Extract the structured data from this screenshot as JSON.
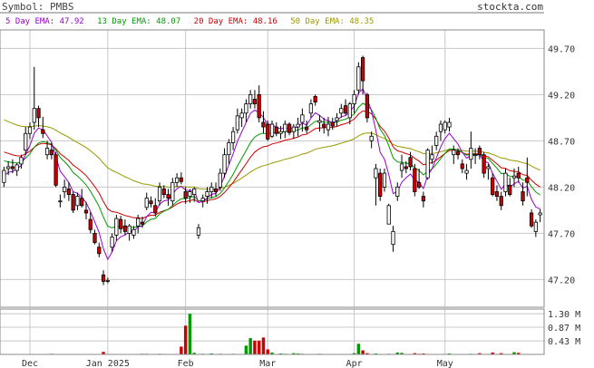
{
  "header": {
    "symbol_text": "Symbol: PMBS",
    "site": "stockta.com"
  },
  "legend": {
    "ema5": "5 Day EMA: 47.92",
    "ema13": "13 Day EMA: 48.07",
    "ema20": "20 Day EMA: 48.16",
    "ema50": "50 Day EMA: 48.35"
  },
  "colors": {
    "ema5": "#9900cc",
    "ema13": "#009900",
    "ema20": "#cc0000",
    "ema50": "#999900",
    "up_candle": "#ffffff",
    "down_candle": "#cc0000",
    "vol_up": "#009900",
    "vol_down": "#cc0000",
    "grid": "#c8c8c8",
    "axis_text": "#333333"
  },
  "chart_data": {
    "type": "candlestick",
    "price_axis": {
      "ticks": [
        "49.70",
        "49.20",
        "48.70",
        "48.20",
        "47.70",
        "47.20"
      ],
      "ylim": [
        46.9,
        49.9
      ]
    },
    "volume_axis": {
      "ticks": [
        "1.30 M",
        "0.87 M",
        "0.43 M"
      ],
      "ylim": [
        0,
        1.45
      ]
    },
    "x_labels": [
      "Dec",
      "Jan 2025",
      "Feb",
      "Mar",
      "Apr",
      "May"
    ],
    "x_label_index": [
      6,
      24,
      42,
      61,
      81,
      102
    ],
    "candles": [
      [
        48.25,
        48.42,
        48.2,
        48.38
      ],
      [
        48.4,
        48.48,
        48.33,
        48.42
      ],
      [
        48.42,
        48.5,
        48.35,
        48.4
      ],
      [
        48.38,
        48.46,
        48.32,
        48.44
      ],
      [
        48.45,
        48.55,
        48.4,
        48.52
      ],
      [
        48.6,
        48.85,
        48.55,
        48.78
      ],
      [
        48.78,
        48.9,
        48.72,
        48.85
      ],
      [
        48.9,
        49.5,
        48.82,
        49.05
      ],
      [
        49.05,
        49.08,
        48.85,
        48.95
      ],
      [
        48.82,
        48.96,
        48.73,
        48.78
      ],
      [
        48.55,
        48.7,
        48.5,
        48.62
      ],
      [
        48.6,
        48.68,
        48.5,
        48.55
      ],
      [
        48.55,
        48.58,
        48.2,
        48.22
      ],
      [
        48.05,
        48.12,
        47.98,
        48.05
      ],
      [
        48.15,
        48.28,
        48.08,
        48.2
      ],
      [
        48.18,
        48.25,
        48.05,
        48.12
      ],
      [
        48.12,
        48.15,
        47.92,
        47.95
      ],
      [
        48.0,
        48.14,
        47.95,
        48.1
      ],
      [
        48.08,
        48.18,
        47.98,
        48.0
      ],
      [
        47.95,
        48.04,
        47.85,
        47.92
      ],
      [
        47.85,
        47.93,
        47.7,
        47.74
      ],
      [
        47.7,
        47.74,
        47.58,
        47.6
      ],
      [
        47.55,
        47.6,
        47.44,
        47.48
      ],
      [
        47.25,
        47.3,
        47.14,
        47.18
      ],
      [
        47.18,
        47.22,
        47.16,
        47.19
      ],
      [
        47.55,
        47.7,
        47.5,
        47.66
      ],
      [
        47.68,
        47.9,
        47.62,
        47.86
      ],
      [
        47.85,
        47.89,
        47.7,
        47.75
      ],
      [
        47.78,
        47.85,
        47.68,
        47.72
      ],
      [
        47.7,
        47.8,
        47.62,
        47.78
      ],
      [
        47.68,
        47.78,
        47.64,
        47.74
      ],
      [
        47.78,
        47.9,
        47.7,
        47.86
      ],
      [
        47.82,
        47.88,
        47.76,
        47.8
      ],
      [
        47.98,
        48.14,
        47.95,
        48.08
      ],
      [
        48.05,
        48.1,
        47.98,
        48.02
      ],
      [
        48.0,
        48.08,
        47.88,
        47.92
      ],
      [
        48.05,
        48.25,
        48.0,
        48.2
      ],
      [
        48.18,
        48.22,
        48.08,
        48.12
      ],
      [
        48.12,
        48.18,
        48.0,
        48.08
      ],
      [
        48.05,
        48.3,
        48.0,
        48.25
      ],
      [
        48.25,
        48.35,
        48.2,
        48.3
      ],
      [
        48.3,
        48.36,
        48.23,
        48.26
      ],
      [
        48.15,
        48.2,
        48.02,
        48.08
      ],
      [
        48.1,
        48.18,
        48.03,
        48.15
      ],
      [
        48.12,
        48.2,
        48.04,
        48.18
      ],
      [
        47.68,
        47.8,
        47.64,
        47.76
      ],
      [
        48.05,
        48.12,
        47.98,
        48.08
      ],
      [
        48.1,
        48.2,
        48.02,
        48.15
      ],
      [
        48.15,
        48.25,
        48.08,
        48.2
      ],
      [
        48.18,
        48.25,
        48.1,
        48.15
      ],
      [
        48.2,
        48.4,
        48.16,
        48.35
      ],
      [
        48.35,
        48.62,
        48.3,
        48.55
      ],
      [
        48.55,
        48.72,
        48.45,
        48.68
      ],
      [
        48.68,
        48.85,
        48.6,
        48.8
      ],
      [
        48.82,
        49.05,
        48.78,
        48.97
      ],
      [
        48.95,
        49.05,
        48.85,
        49.0
      ],
      [
        49.0,
        49.15,
        48.9,
        49.1
      ],
      [
        49.1,
        49.25,
        49.05,
        49.2
      ],
      [
        49.15,
        49.25,
        49.05,
        49.1
      ],
      [
        49.2,
        49.3,
        48.9,
        48.95
      ],
      [
        48.9,
        49.02,
        48.78,
        48.85
      ],
      [
        48.88,
        48.92,
        48.7,
        48.72
      ],
      [
        48.75,
        48.92,
        48.73,
        48.88
      ],
      [
        48.85,
        48.9,
        48.75,
        48.78
      ],
      [
        48.78,
        48.86,
        48.72,
        48.8
      ],
      [
        48.8,
        48.92,
        48.73,
        48.88
      ],
      [
        48.88,
        48.9,
        48.76,
        48.79
      ],
      [
        48.8,
        48.88,
        48.72,
        48.85
      ],
      [
        48.85,
        48.95,
        48.75,
        48.88
      ],
      [
        48.9,
        49.05,
        48.8,
        48.98
      ],
      [
        48.85,
        48.92,
        48.78,
        48.82
      ],
      [
        49.0,
        49.15,
        48.95,
        49.1
      ],
      [
        49.18,
        49.2,
        49.08,
        49.12
      ],
      [
        48.9,
        48.98,
        48.8,
        48.92
      ],
      [
        48.88,
        48.95,
        48.78,
        48.85
      ],
      [
        48.82,
        48.96,
        48.75,
        48.88
      ],
      [
        48.9,
        48.95,
        48.82,
        48.86
      ],
      [
        48.92,
        49.0,
        48.85,
        48.95
      ],
      [
        49.0,
        49.1,
        48.95,
        49.05
      ],
      [
        49.08,
        49.15,
        48.98,
        49.0
      ],
      [
        48.95,
        49.12,
        48.88,
        49.1
      ],
      [
        49.1,
        49.25,
        49.0,
        49.2
      ],
      [
        49.25,
        49.55,
        49.2,
        49.5
      ],
      [
        49.6,
        49.62,
        49.2,
        49.35
      ],
      [
        49.2,
        49.22,
        48.9,
        48.95
      ],
      [
        48.7,
        48.8,
        48.62,
        48.75
      ],
      [
        48.3,
        48.45,
        48.0,
        48.4
      ],
      [
        48.35,
        48.4,
        48.05,
        48.1
      ],
      [
        48.2,
        48.4,
        48.15,
        48.35
      ],
      [
        47.8,
        48.02,
        47.8,
        48.0
      ],
      [
        47.58,
        47.78,
        47.5,
        47.72
      ],
      [
        48.1,
        48.25,
        48.05,
        48.2
      ],
      [
        48.38,
        48.55,
        48.3,
        48.45
      ],
      [
        48.42,
        48.48,
        48.35,
        48.4
      ],
      [
        48.52,
        48.58,
        48.38,
        48.42
      ],
      [
        48.4,
        48.45,
        48.1,
        48.15
      ],
      [
        48.25,
        48.4,
        48.18,
        48.2
      ],
      [
        48.1,
        48.15,
        47.98,
        48.05
      ],
      [
        48.3,
        48.62,
        48.28,
        48.6
      ],
      [
        48.5,
        48.65,
        48.45,
        48.55
      ],
      [
        48.65,
        48.8,
        48.6,
        48.75
      ],
      [
        48.8,
        48.92,
        48.7,
        48.88
      ],
      [
        48.82,
        48.92,
        48.78,
        48.9
      ],
      [
        48.85,
        48.95,
        48.8,
        48.9
      ],
      [
        48.55,
        48.65,
        48.45,
        48.6
      ],
      [
        48.58,
        48.62,
        48.5,
        48.55
      ],
      [
        48.45,
        48.5,
        48.35,
        48.4
      ],
      [
        48.35,
        48.45,
        48.28,
        48.38
      ],
      [
        48.5,
        48.8,
        48.4,
        48.62
      ],
      [
        48.55,
        48.62,
        48.45,
        48.55
      ],
      [
        48.62,
        48.65,
        48.5,
        48.55
      ],
      [
        48.55,
        48.58,
        48.3,
        48.35
      ],
      [
        48.4,
        48.45,
        48.28,
        48.42
      ],
      [
        48.3,
        48.35,
        48.1,
        48.12
      ],
      [
        48.15,
        48.22,
        48.05,
        48.1
      ],
      [
        48.1,
        48.15,
        47.95,
        48.0
      ],
      [
        48.15,
        48.4,
        48.1,
        48.35
      ],
      [
        48.22,
        48.3,
        48.1,
        48.12
      ],
      [
        48.3,
        48.4,
        48.2,
        48.32
      ],
      [
        48.35,
        48.42,
        48.25,
        48.3
      ],
      [
        48.15,
        48.25,
        48.0,
        48.05
      ],
      [
        48.3,
        48.52,
        48.1,
        48.25
      ],
      [
        47.92,
        47.96,
        47.76,
        47.78
      ],
      [
        47.72,
        47.85,
        47.66,
        47.82
      ],
      [
        47.9,
        47.96,
        47.82,
        47.92
      ]
    ],
    "volume": [
      [
        11,
        0.02
      ],
      [
        23,
        0.08
      ],
      [
        32,
        0.02
      ],
      [
        33,
        0.02
      ],
      [
        36,
        0.02
      ],
      [
        37,
        0.01
      ],
      [
        41,
        0.25
      ],
      [
        42,
        0.92
      ],
      [
        43,
        1.3
      ],
      [
        44,
        0.05
      ],
      [
        46,
        0.02
      ],
      [
        48,
        0.03
      ],
      [
        50,
        0.02
      ],
      [
        51,
        0.01
      ],
      [
        53,
        0.02
      ],
      [
        56,
        0.28
      ],
      [
        57,
        0.52
      ],
      [
        58,
        0.44
      ],
      [
        59,
        0.44
      ],
      [
        60,
        0.54
      ],
      [
        61,
        0.16
      ],
      [
        62,
        0.06
      ],
      [
        64,
        0.03
      ],
      [
        65,
        0.02
      ],
      [
        67,
        0.04
      ],
      [
        68,
        0.03
      ],
      [
        69,
        0.02
      ],
      [
        73,
        0.02
      ],
      [
        81,
        0.04
      ],
      [
        82,
        0.34
      ],
      [
        83,
        0.13
      ],
      [
        84,
        0.04
      ],
      [
        86,
        0.03
      ],
      [
        89,
        0.02
      ],
      [
        91,
        0.06
      ],
      [
        92,
        0.05
      ],
      [
        95,
        0.04
      ],
      [
        96,
        0.02
      ],
      [
        97,
        0.03
      ],
      [
        103,
        0.03
      ],
      [
        108,
        0.02
      ],
      [
        110,
        0.04
      ],
      [
        113,
        0.06
      ],
      [
        115,
        0.04
      ],
      [
        118,
        0.07
      ],
      [
        119,
        0.05
      ]
    ]
  }
}
